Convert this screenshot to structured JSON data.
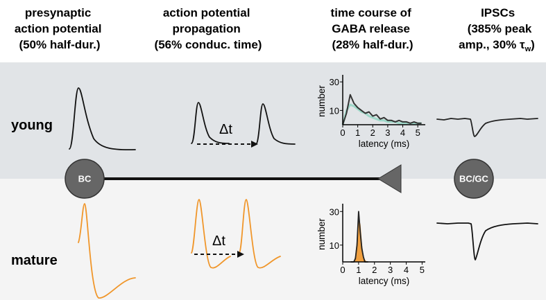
{
  "headers": [
    {
      "lines": [
        "presynaptic",
        "action potential",
        "(50% half-dur.)"
      ]
    },
    {
      "lines": [
        "action potential",
        "propagation",
        "(56% conduc. time)"
      ]
    },
    {
      "lines": [
        "time course of",
        "GABA release",
        "(28% half-dur.)"
      ]
    },
    {
      "lines": [
        "IPSCs",
        "(385% peak",
        "amp., 30% τ"
      ],
      "subscript": "w",
      "tail": ")"
    }
  ],
  "rows": [
    {
      "label": "young",
      "delta_label": "Δt"
    },
    {
      "label": "mature",
      "delta_label": "Δt"
    }
  ],
  "nodes": [
    {
      "label": "BC"
    },
    {
      "label": "BC/GC"
    }
  ],
  "histograms": [
    {
      "xlabel": "latency (ms)",
      "ylabel": "number",
      "xlim": [
        0,
        5.5
      ],
      "ylim": [
        0,
        33
      ],
      "xticks": [
        0,
        1,
        2,
        3,
        4,
        5
      ],
      "yticks": [
        10,
        30
      ],
      "x": [
        0,
        0.25,
        0.5,
        0.75,
        1,
        1.25,
        1.5,
        1.75,
        2,
        2.25,
        2.5,
        2.75,
        3,
        3.25,
        3.5,
        3.75,
        4,
        4.25,
        4.5,
        4.75,
        5,
        5.25
      ],
      "series": [
        {
          "color": "#9fd8c9",
          "width": 3,
          "fill": false,
          "values": [
            0,
            10,
            14,
            13,
            11,
            9,
            8,
            6,
            5,
            4,
            3,
            3,
            2,
            2,
            2,
            1,
            1,
            1,
            1,
            1,
            1,
            1
          ]
        },
        {
          "color": "#333333",
          "width": 2,
          "fill": false,
          "values": [
            0,
            8,
            21,
            15,
            12,
            10,
            8,
            9,
            6,
            7,
            4,
            5,
            3,
            3,
            2,
            3,
            2,
            2,
            1,
            2,
            1,
            1
          ]
        }
      ]
    },
    {
      "xlabel": "latency (ms)",
      "ylabel": "number",
      "xlim": [
        0,
        5.2
      ],
      "ylim": [
        0,
        33
      ],
      "xticks": [
        0,
        1,
        2,
        3,
        4,
        5
      ],
      "yticks": [
        10,
        30
      ],
      "x": [
        0.5,
        0.6,
        0.7,
        0.8,
        0.9,
        1.0,
        1.1,
        1.2,
        1.3,
        1.4,
        1.5,
        1.6
      ],
      "series": [
        {
          "color": "#f0a040",
          "width": 1,
          "fill": true,
          "values": [
            0,
            0,
            0,
            3,
            12,
            26,
            22,
            10,
            3,
            1,
            0,
            0
          ]
        },
        {
          "color": "#222222",
          "width": 1.8,
          "fill": false,
          "values": [
            0,
            0,
            0,
            2,
            10,
            30,
            18,
            8,
            3,
            0,
            0,
            0
          ]
        }
      ]
    }
  ]
}
